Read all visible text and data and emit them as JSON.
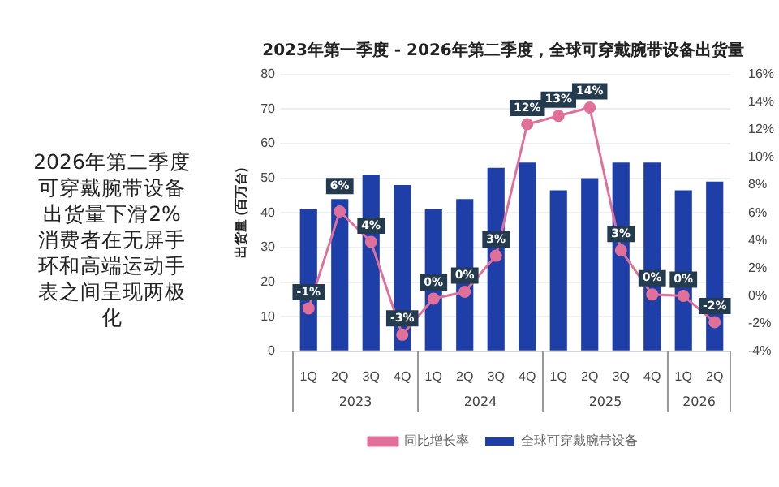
{
  "chart_data": {
    "type": "bar",
    "title": "2023年第一季度 -  2026年第二季度，全球可穿戴腕带设备出货量",
    "subtitle": "2026年第二季度可穿戴腕带设备出货量下滑2%\n消费者在无屏手环和高端运动手表之间呈现两极化",
    "ylabel": "出货量 (百万台)",
    "categories": [
      "1Q",
      "2Q",
      "3Q",
      "4Q",
      "1Q",
      "2Q",
      "3Q",
      "4Q",
      "1Q",
      "2Q",
      "3Q",
      "4Q",
      "1Q",
      "2Q"
    ],
    "annotations": [
      "2023",
      "2024",
      "2025",
      "2026"
    ],
    "series": [
      {
        "name": "全球可穿戴腕带设备",
        "color": "#1f3fa8",
        "values": [
          41,
          44,
          51,
          48,
          41,
          44,
          53,
          54.5,
          46.5,
          50,
          54.5,
          54.5,
          46.5,
          49
        ]
      },
      {
        "name": "同比增长率",
        "type": "line",
        "axis": "y2",
        "color": "#e0709a",
        "marker": "circle",
        "values": [
          -0.9,
          6.1,
          3.9,
          -2.8,
          -0.2,
          0.3,
          2.9,
          12.4,
          13,
          13.6,
          3.3,
          0.1,
          0,
          -1.9
        ],
        "value_labels": [
          "-1%",
          "6%",
          "4%",
          "-3%",
          "0%",
          "0%",
          "3%",
          "12%",
          "13%",
          "14%",
          "3%",
          "0%",
          "0%",
          "-2%"
        ]
      }
    ],
    "ylim": [
      0,
      80
    ],
    "yticks": [
      0,
      10,
      20,
      30,
      40,
      50,
      60,
      70,
      80
    ],
    "y2lim": [
      -4,
      16
    ],
    "y2ticks": [
      {
        "value": -4,
        "label": "-4%"
      },
      {
        "value": -2,
        "label": "-2%"
      },
      {
        "value": 0,
        "label": "0%"
      },
      {
        "value": 2,
        "label": "2%"
      },
      {
        "value": 4,
        "label": "4%"
      },
      {
        "value": 6,
        "label": "6%"
      },
      {
        "value": 8,
        "label": "8%"
      },
      {
        "value": 10,
        "label": "10%"
      },
      {
        "value": 12,
        "label": "12%"
      },
      {
        "value": 14,
        "label": "14%"
      },
      {
        "value": 16,
        "label": "16%"
      }
    ],
    "grid": "y",
    "legend": "bottom"
  }
}
